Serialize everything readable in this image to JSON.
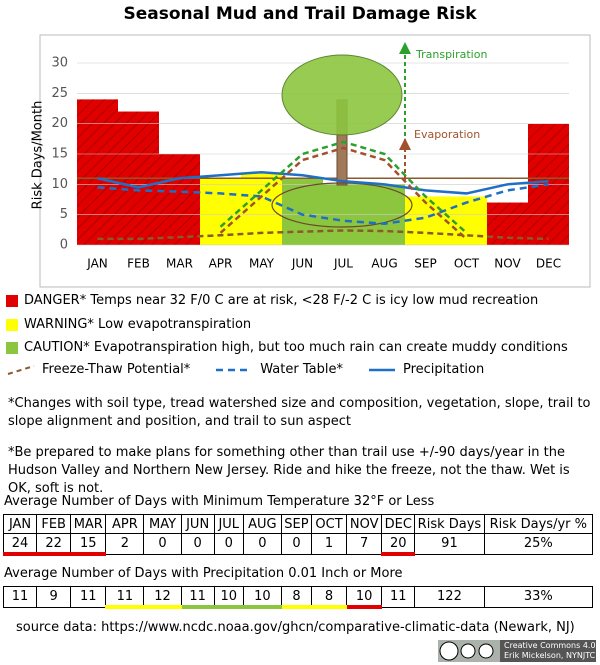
{
  "chart_data": {
    "type": "bar",
    "title": "Seasonal Mud and Trail Damage Risk",
    "y_label": "Risk Days/Month",
    "categories": [
      "JAN",
      "FEB",
      "MAR",
      "APR",
      "MAY",
      "JUN",
      "JUL",
      "AUG",
      "SEP",
      "OCT",
      "NOV",
      "DEC"
    ],
    "values": [
      24,
      22,
      15,
      11,
      12,
      11,
      10,
      10,
      8,
      8,
      7,
      20
    ],
    "bar_colors": [
      "#e00000",
      "#e00000",
      "#e00000",
      "#ffff00",
      "#ffff00",
      "#8cc63f",
      "#8cc63f",
      "#8cc63f",
      "#ffff00",
      "#ffff00",
      "#e00000",
      "#e00000"
    ],
    "ylim": [
      0,
      30
    ],
    "yticks": [
      0,
      5,
      10,
      15,
      20,
      25,
      30
    ],
    "grid": true,
    "reference_line": 11,
    "series": [
      {
        "name": "Freeze-Thaw Potential*",
        "color": "#8b5a2b",
        "dash": "6,4",
        "values": [
          1,
          1,
          1.3,
          1.6,
          2,
          2.2,
          2.4,
          2.3,
          2,
          1.6,
          1.2,
          1
        ]
      },
      {
        "name": "Water Table*",
        "color": "#1f6fc4",
        "dash": "7,5",
        "values": [
          9.5,
          9,
          8.8,
          8.5,
          8,
          5,
          4,
          3.5,
          4.5,
          7,
          9,
          10
        ]
      },
      {
        "name": "Precipitation",
        "color": "#1f6fc4",
        "dash": "",
        "values": [
          11,
          9.5,
          11,
          11.5,
          12,
          11.5,
          10.5,
          10,
          9,
          8.5,
          10,
          10.5
        ]
      },
      {
        "name": "Transpiration",
        "color": "#2ca02c",
        "dash": "6,4",
        "values": [
          null,
          null,
          null,
          3,
          9,
          15,
          17,
          15,
          8,
          2,
          null,
          null
        ]
      },
      {
        "name": "Evaporation",
        "color": "#a0522d",
        "dash": "6,4",
        "values": [
          null,
          null,
          null,
          2,
          8,
          14,
          16,
          14,
          7,
          1,
          null,
          null
        ]
      }
    ]
  },
  "legend_text": {
    "danger": "DANGER*  Temps near 32 F/0 C are at risk, <28 F/-2 C is icy low mud recreation",
    "warning": "WARNING*  Low evapotranspiration",
    "caution": "CAUTION*  Evapotranspiration high, but too much rain can create muddy conditions"
  },
  "notes": [
    "*Changes with soil type, tread watershed size and composition, vegetation, slope, trail to slope alignment and position, and trail to sun aspect",
    "*Be prepared to make plans for something other than trail use +/-90 days/year in the Hudson Valley and Northern New Jersey. Ride and hike the freeze, not the thaw. Wet is OK, soft is not."
  ],
  "table1": {
    "title": "Average Number of Days with Minimum Temperature 32°F or Less",
    "header": [
      "JAN",
      "FEB",
      "MAR",
      "APR",
      "MAY",
      "JUN",
      "JUL",
      "AUG",
      "SEP",
      "OCT",
      "NOV",
      "DEC",
      "Risk Days",
      "Risk Days/yr %"
    ],
    "values": [
      "24",
      "22",
      "15",
      "2",
      "0",
      "0",
      "0",
      "0",
      "0",
      "1",
      "7",
      "20",
      "91",
      "25%"
    ]
  },
  "table2": {
    "title": "Average Number of Days with Precipitation 0.01 Inch or More",
    "values": [
      "11",
      "9",
      "11",
      "11",
      "12",
      "11",
      "10",
      "10",
      "8",
      "8",
      "10",
      "11",
      "122",
      "33%"
    ]
  },
  "source": "source data: https://www.ncdc.noaa.gov/ghcn/comparative-climatic-data (Newark, NJ)",
  "license": {
    "line1": "Creative Commons 4.0",
    "line2": "Erik Mickelson, NYNJTC"
  }
}
